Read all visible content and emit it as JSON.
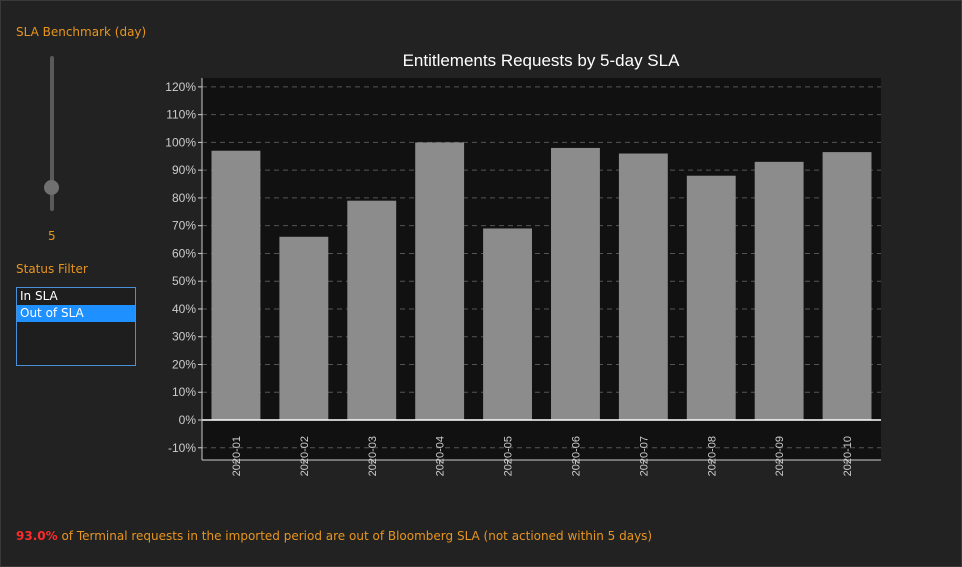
{
  "sidebar": {
    "slider_label": "SLA Benchmark (day)",
    "slider_value": "5",
    "slider_fraction": 0.15,
    "status_label": "Status Filter",
    "status_options": [
      "In SLA",
      "Out of SLA"
    ],
    "status_selected": "Out of SLA"
  },
  "colors": {
    "background": "#222222",
    "plot_background": "#111111",
    "bar": "#8c8c8c",
    "accent_orange": "#e8951f",
    "highlight_red": "#ff2a2a",
    "selection_blue": "#1e90ff"
  },
  "chart_data": {
    "type": "bar",
    "title": "Entitlements Requests by 5-day SLA",
    "xlabel": "",
    "ylabel": "",
    "categories": [
      "2020-01",
      "2020-02",
      "2020-03",
      "2020-04",
      "2020-05",
      "2020-06",
      "2020-07",
      "2020-08",
      "2020-09",
      "2020-10"
    ],
    "values": [
      97,
      66,
      79,
      100,
      69,
      98,
      96,
      88,
      93,
      96.5
    ],
    "ylim": [
      -13,
      123
    ],
    "yticks": [
      -10,
      0,
      10,
      20,
      30,
      40,
      50,
      60,
      70,
      80,
      90,
      100,
      110,
      120
    ],
    "ytick_labels": [
      "-10%",
      "0%",
      "10%",
      "20%",
      "30%",
      "40%",
      "50%",
      "60%",
      "70%",
      "80%",
      "90%",
      "100%",
      "110%",
      "120%"
    ],
    "grid": true
  },
  "footer": {
    "percent": "93.0%",
    "text": " of Terminal requests in the imported period are out of Bloomberg SLA (not actioned within 5 days)"
  }
}
